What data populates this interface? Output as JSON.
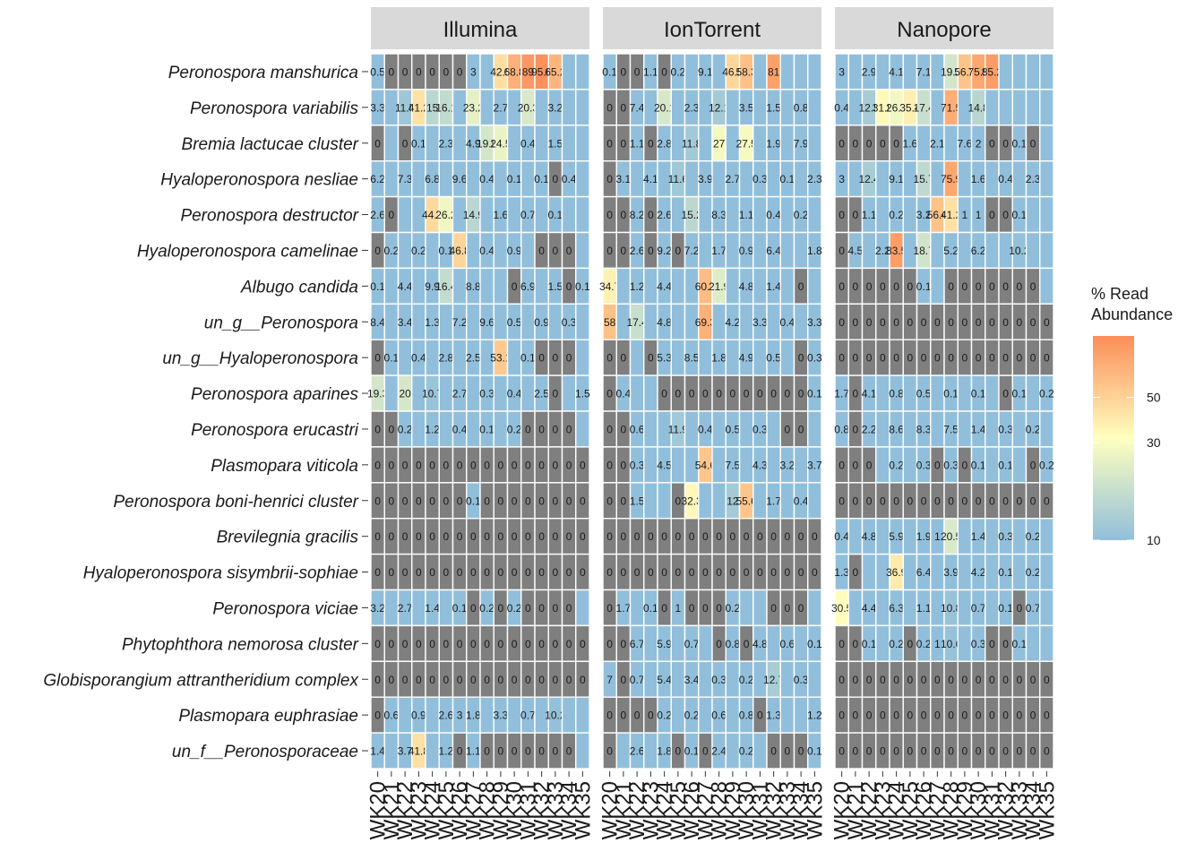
{
  "chart_data": {
    "type": "heatmap",
    "facets": [
      "Illumina",
      "IonTorrent",
      "Nanopore"
    ],
    "x": [
      "WK20",
      "WK21",
      "WK22",
      "WK23",
      "WK24",
      "WK25",
      "WK26",
      "WK27",
      "WK28",
      "WK29",
      "WK30",
      "WK31",
      "WK32",
      "WK33",
      "WK34",
      "WK35"
    ],
    "y": [
      "Peronospora manshurica",
      "Peronospora variabilis",
      "Bremia lactucae cluster",
      "Hyaloperonospora nesliae",
      "Peronospora destructor",
      "Hyaloperonospora camelinae",
      "Albugo candida",
      "un_g__Peronospora",
      "un_g__Hyaloperonospora",
      "Peronospora aparines",
      "Peronospora erucastri",
      "Plasmopara viticola",
      "Peronospora boni-henrici cluster",
      "Brevilegnia gracilis",
      "Hyaloperonospora sisymbrii-sophiae",
      "Peronospora viciae",
      "Phytophthora nemorosa cluster",
      "Globisporangium attrantheridium complex",
      "Plasmopara euphrasiae",
      "un_f__Peronosporaceae"
    ],
    "values": {
      "Illumina": [
        [
          "0.5",
          "0",
          "0",
          "0",
          "0",
          "0",
          "0",
          "3",
          "",
          "42.5",
          "68.8",
          "89",
          "95.6",
          "65.2",
          "",
          ""
        ],
        [
          "3.3",
          "",
          "11.5",
          "41.2",
          "15",
          "16.1",
          "",
          "23.2",
          "",
          "2.7",
          "",
          "20.3",
          "",
          "3.2",
          "",
          ""
        ],
        [
          "0",
          "",
          "0",
          "0.1",
          "",
          "2.3",
          "",
          "4.9",
          "19.5",
          "24.5",
          "",
          "0.4",
          "",
          "1.5",
          "",
          ""
        ],
        [
          "6.2",
          "",
          "7.3",
          "",
          "6.8",
          "",
          "9.6",
          "",
          "0.4",
          "",
          "0.1",
          "",
          "0.1",
          "0",
          "0.4",
          ""
        ],
        [
          "2.6",
          "0",
          "",
          "",
          "44.7",
          "26.2",
          "",
          "14.9",
          "",
          "1.6",
          "",
          "0.7",
          "",
          "0.1",
          "",
          ""
        ],
        [
          "0",
          "0.2",
          "",
          "0.2",
          "",
          "0.1",
          "46.8",
          "",
          "0.4",
          "",
          "0.9",
          "",
          "0",
          "0",
          "0",
          ""
        ],
        [
          "0.1",
          "",
          "4.4",
          "",
          "9.9",
          "16.4",
          "",
          "8.8",
          "",
          "",
          "0",
          "6.9",
          "",
          "1.5",
          "0",
          "0.1"
        ],
        [
          "8.4",
          "",
          "3.4",
          "",
          "1.3",
          "",
          "7.2",
          "",
          "9.6",
          "",
          "0.5",
          "",
          "0.9",
          "",
          "0.3",
          ""
        ],
        [
          "0",
          "0.1",
          "",
          "0.4",
          "",
          "2.8",
          "",
          "2.5",
          "",
          "53.1",
          "",
          "0.1",
          "0",
          "0",
          "0",
          ""
        ],
        [
          "19.3",
          "",
          "20",
          "",
          "10.7",
          "",
          "2.7",
          "",
          "0.3",
          "",
          "0.4",
          "",
          "2.5",
          "0",
          "",
          "1.5"
        ],
        [
          "0",
          "0",
          "0.2",
          "",
          "1.2",
          "",
          "0.4",
          "",
          "0.1",
          "",
          "0.2",
          "0",
          "0",
          "0",
          "0",
          ""
        ],
        [
          "0",
          "0",
          "0",
          "0",
          "0",
          "0",
          "0",
          "0",
          "0",
          "0",
          "0",
          "0",
          "0",
          "0",
          "0",
          "0"
        ],
        [
          "0",
          "0",
          "0",
          "0",
          "0",
          "0",
          "0",
          "0.1",
          "0",
          "0",
          "0",
          "0",
          "0",
          "0",
          "0",
          "0"
        ],
        [
          "0",
          "0",
          "0",
          "0",
          "0",
          "0",
          "0",
          "0",
          "0",
          "0",
          "0",
          "0",
          "0",
          "0",
          "0",
          "0"
        ],
        [
          "0",
          "0",
          "0",
          "0",
          "0",
          "0",
          "0",
          "0",
          "0",
          "0",
          "0",
          "0",
          "0",
          "0",
          "0",
          "0"
        ],
        [
          "3.2",
          "",
          "2.7",
          "",
          "1.4",
          "",
          "0.1",
          "0",
          "0.2",
          "0",
          "0.2",
          "0",
          "0",
          "0",
          "0",
          ""
        ],
        [
          "0",
          "0",
          "0",
          "0",
          "0",
          "0",
          "0",
          "0",
          "0",
          "0",
          "0",
          "0",
          "0",
          "0",
          "0",
          "0"
        ],
        [
          "0",
          "0",
          "0",
          "0",
          "0",
          "0",
          "0",
          "0",
          "0",
          "0",
          "0",
          "0",
          "0",
          "0",
          "0",
          "0"
        ],
        [
          "0",
          "0.6",
          "",
          "0.9",
          "",
          "2.6",
          "3",
          "1.8",
          "",
          "3.3",
          "",
          "0.7",
          "",
          "10.2",
          "",
          ""
        ],
        [
          "1.4",
          "",
          "3.7",
          "41.8",
          "",
          "1.2",
          "0",
          "1.1",
          "0",
          "0",
          "0",
          "0",
          "0",
          "0",
          "0",
          ""
        ]
      ],
      "IonTorrent": [
        [
          "0.1",
          "0",
          "0",
          "1.1",
          "0",
          "0.2",
          "",
          "9.1",
          "",
          "46.5",
          "58.3",
          "",
          "81",
          "",
          "",
          ""
        ],
        [
          "0",
          "0",
          "7.4",
          "",
          "20.1",
          "",
          "2.3",
          "",
          "12.1",
          "",
          "3.5",
          "",
          "1.5",
          "",
          "0.8",
          ""
        ],
        [
          "0",
          "0",
          "1.1",
          "0",
          "2.8",
          "",
          "11.8",
          "",
          "27",
          "",
          "27.5",
          "",
          "1.9",
          "",
          "7.9",
          ""
        ],
        [
          "0",
          "3.1",
          "",
          "4.1",
          "",
          "11.6",
          "",
          "3.9",
          "",
          "2.7",
          "",
          "0.3",
          "",
          "0.1",
          "",
          "2.3"
        ],
        [
          "0",
          "0",
          "8.2",
          "0",
          "2.6",
          "",
          "15.2",
          "",
          "8.3",
          "",
          "1.1",
          "",
          "0.4",
          "",
          "0.2",
          ""
        ],
        [
          "0",
          "0",
          "2.6",
          "0",
          "9.2",
          "0",
          "7.2",
          "",
          "1.7",
          "",
          "0.9",
          "",
          "6.4",
          "",
          "",
          "1.8"
        ],
        [
          "34.7",
          "",
          "1.2",
          "",
          "4.4",
          "",
          "",
          "60.7",
          "21.9",
          "",
          "4.8",
          "",
          "1.4",
          "",
          "0",
          ""
        ],
        [
          "58",
          "",
          "17.4",
          "",
          "4.8",
          "",
          "",
          "69.3",
          "",
          "4.2",
          "",
          "3.3",
          "",
          "0.4",
          "",
          "3.3"
        ],
        [
          "0",
          "0",
          "",
          "0",
          "5.3",
          "",
          "8.5",
          "",
          "1.8",
          "",
          "4.9",
          "",
          "0.5",
          "",
          "0",
          "0.3"
        ],
        [
          "0",
          "0.4",
          "",
          "",
          "0",
          "0",
          "0",
          "0",
          "0",
          "0",
          "0",
          "0",
          "0",
          "0",
          "0",
          "0.1"
        ],
        [
          "0",
          "0",
          "0.6",
          "",
          "",
          "11.9",
          "",
          "0.4",
          "",
          "0.5",
          "",
          "0.3",
          "",
          "0",
          "0",
          ""
        ],
        [
          "0",
          "0",
          "0.3",
          "",
          "4.5",
          "",
          "",
          "54.6",
          "",
          "7.5",
          "",
          "4.3",
          "",
          "3.2",
          "",
          "3.7"
        ],
        [
          "0",
          "0",
          "1.5",
          "",
          "",
          "0",
          "32.3",
          "",
          "",
          "12",
          "55.6",
          "",
          "1.7",
          "",
          "0.4",
          ""
        ],
        [
          "0",
          "0",
          "0",
          "0",
          "0",
          "0",
          "0",
          "0",
          "0",
          "0",
          "0",
          "0",
          "0",
          "0",
          "0",
          "0"
        ],
        [
          "0",
          "0",
          "0",
          "0",
          "0",
          "0",
          "0",
          "0",
          "0",
          "0",
          "0",
          "0",
          "0",
          "0",
          "0",
          "0"
        ],
        [
          "0",
          "1.7",
          "",
          "0.1",
          "0",
          "1",
          "0",
          "0",
          "0",
          "0.2",
          "",
          "",
          "0",
          "0",
          "0",
          ""
        ],
        [
          "0",
          "0",
          "6.7",
          "",
          "5.9",
          "",
          "0.7",
          "",
          "0",
          "0.8",
          "0",
          "4.8",
          "",
          "0.6",
          "",
          "0.1"
        ],
        [
          "7",
          "0",
          "0.7",
          "",
          "5.4",
          "",
          "3.4",
          "",
          "0.3",
          "",
          "0.2",
          "",
          "12.7",
          "",
          "0.3",
          ""
        ],
        [
          "0",
          "0",
          "0",
          "0",
          "0.2",
          "",
          "0.2",
          "",
          "0.6",
          "",
          "0.8",
          "0",
          "1.3",
          "",
          "",
          "1.2"
        ],
        [
          "0",
          "",
          "2.6",
          "",
          "1.8",
          "0",
          "0.1",
          "0",
          "2.4",
          "",
          "0.2",
          "",
          "0",
          "0",
          "0",
          "0.1"
        ]
      ],
      "Nanopore": [
        [
          "3",
          "",
          "2.9",
          "",
          "4.1",
          "",
          "7.1",
          "",
          "19.3",
          "56.2",
          "75.9",
          "85.2",
          "",
          "",
          "",
          ""
        ],
        [
          "0.4",
          "",
          "12.5",
          "31.9",
          "26.7",
          "35.4",
          "17.4",
          "",
          "71.5",
          "",
          "14.8",
          "",
          "",
          "",
          "",
          ""
        ],
        [
          "0",
          "0",
          "0",
          "0",
          "0",
          "1.6",
          "",
          "2.1",
          "",
          "7.6",
          "2",
          "0",
          "0",
          "0.1",
          "0",
          ""
        ],
        [
          "3",
          "",
          "12.4",
          "",
          "9.1",
          "",
          "15.7",
          "",
          "75.9",
          "",
          "1.6",
          "",
          "0.4",
          "",
          "2.3",
          ""
        ],
        [
          "0",
          "0",
          "1.1",
          "",
          "0.2",
          "",
          "3.2",
          "56.6",
          "41.2",
          "1",
          "1",
          "0",
          "0",
          "0.1",
          "",
          ""
        ],
        [
          "0",
          "4.5",
          "",
          "2.2",
          "83.5",
          "",
          "18.7",
          "",
          "5.2",
          "",
          "6.2",
          "",
          "",
          "10.2",
          "",
          ""
        ],
        [
          "0",
          "0",
          "0",
          "0",
          "0",
          "0",
          "0.1",
          "",
          "0",
          "0",
          "0",
          "0",
          "0",
          "0",
          "0",
          ""
        ],
        [
          "0",
          "0",
          "0",
          "0",
          "0",
          "0",
          "0",
          "0",
          "0",
          "0",
          "0",
          "0",
          "0",
          "0",
          "0",
          "0"
        ],
        [
          "0",
          "0",
          "0",
          "0",
          "0",
          "0",
          "0",
          "0",
          "0",
          "0",
          "0",
          "0",
          "0",
          "0",
          "0",
          "0"
        ],
        [
          "1.7",
          "0",
          "4.1",
          "",
          "0.8",
          "",
          "0.5",
          "",
          "0.1",
          "",
          "0.1",
          "",
          "0",
          "0.1",
          "",
          "0.2"
        ],
        [
          "0.8",
          "0",
          "2.2",
          "",
          "8.6",
          "",
          "8.3",
          "",
          "7.5",
          "",
          "1.4",
          "",
          "0.3",
          "",
          "0.2",
          ""
        ],
        [
          "0",
          "0",
          "0",
          "",
          "0.2",
          "",
          "0.3",
          "0",
          "0.3",
          "0",
          "0.1",
          "",
          "0.1",
          "",
          "0",
          "0.2"
        ],
        [
          "0",
          "0",
          "0",
          "0",
          "0",
          "0",
          "0",
          "0",
          "0",
          "0",
          "0",
          "0",
          "0",
          "0",
          "0",
          "0"
        ],
        [
          "0.4",
          "",
          "4.8",
          "",
          "5.9",
          "",
          "1.9",
          "1",
          "20.5",
          "",
          "1.4",
          "",
          "0.3",
          "",
          "0.2",
          ""
        ],
        [
          "1.3",
          "0",
          "",
          "",
          "36.9",
          "",
          "6.4",
          "",
          "3.9",
          "",
          "4.2",
          "",
          "0.1",
          "",
          "0.2",
          ""
        ],
        [
          "30.5",
          "",
          "4.4",
          "",
          "6.3",
          "",
          "1.1",
          "",
          "10.8",
          "",
          "0.7",
          "",
          "0.1",
          "0",
          "0.7",
          ""
        ],
        [
          "0",
          "0",
          "0.1",
          "",
          "0.2",
          "0",
          "0.2",
          "1",
          "10.6",
          "",
          "0.3",
          "0",
          "0",
          "0.1",
          "",
          ""
        ],
        [
          "0",
          "0",
          "0",
          "0",
          "0",
          "0",
          "0",
          "0",
          "0",
          "0",
          "0",
          "0",
          "0",
          "0",
          "0",
          "0"
        ],
        [
          "0",
          "0",
          "0",
          "0",
          "0",
          "0",
          "0",
          "0",
          "0",
          "0",
          "0",
          "0",
          "0",
          "0",
          "0",
          "0"
        ],
        [
          "0",
          "0",
          "0",
          "0",
          "0",
          "0",
          "0",
          "0",
          "0",
          "0",
          "0",
          "0",
          "0",
          "0",
          "0",
          "0"
        ]
      ]
    },
    "legend": {
      "title_line1": "% Read",
      "title_line2": "Abundance",
      "ticks": [
        "10",
        "30",
        "50"
      ]
    },
    "colors": {
      "zero": "#7f7f7f",
      "low": "#91bfdb",
      "mid": "#ffffbf",
      "high": "#fc8d59",
      "strip": "#d9d9d9"
    }
  }
}
